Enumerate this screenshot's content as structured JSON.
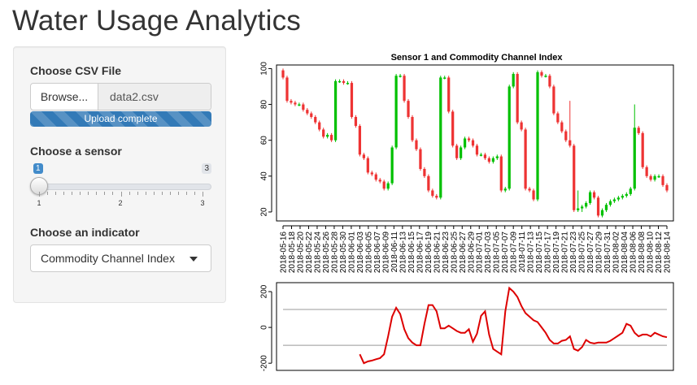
{
  "app": {
    "title": "Water Usage Analytics"
  },
  "sidebar": {
    "file": {
      "label": "Choose CSV File",
      "browse_label": "Browse...",
      "file_name": "data2.csv",
      "progress_text": "Upload complete",
      "progress_value": 100
    },
    "sensor": {
      "label": "Choose a sensor",
      "min": "1",
      "max": "3",
      "value": 1,
      "tick_labels": [
        "1",
        "2",
        "3"
      ]
    },
    "indicator": {
      "label": "Choose an indicator",
      "selected": "Commodity Channel Index"
    }
  },
  "chart_data": [
    {
      "type": "candlestick",
      "title": "Sensor 1 and Commodity Channel Index",
      "ylim": [
        15,
        102
      ],
      "y_ticks": [
        "20",
        "40",
        "60",
        "80",
        "100"
      ],
      "x_tick_labels": [
        "2018-05-16",
        "2018-05-18",
        "2018-05-20",
        "2018-05-22",
        "2018-05-24",
        "2018-05-26",
        "2018-05-28",
        "2018-05-30",
        "2018-06-01",
        "2018-06-03",
        "2018-06-05",
        "2018-06-07",
        "2018-06-09",
        "2018-06-11",
        "2018-06-13",
        "2018-06-15",
        "2018-06-17",
        "2018-06-19",
        "2018-06-21",
        "2018-06-23",
        "2018-06-25",
        "2018-06-27",
        "2018-06-29",
        "2018-07-01",
        "2018-07-03",
        "2018-07-05",
        "2018-07-07",
        "2018-07-09",
        "2018-07-11",
        "2018-07-13",
        "2018-07-15",
        "2018-07-17",
        "2018-07-19",
        "2018-07-21",
        "2018-07-23",
        "2018-07-25",
        "2018-07-27",
        "2018-07-29",
        "2018-07-31",
        "2018-08-02",
        "2018-08-04",
        "2018-08-06",
        "2018-08-08",
        "2018-08-10",
        "2018-08-12",
        "2018-08-14"
      ],
      "up_color": "#00c000",
      "down_color": "#ee3333",
      "open": [
        99,
        95,
        82,
        81,
        80,
        80,
        77,
        75,
        73,
        70,
        66,
        62,
        63,
        60,
        93,
        93,
        92,
        92,
        73,
        68,
        52,
        50,
        42,
        41,
        38,
        37,
        33,
        36,
        56,
        96,
        96,
        82,
        73,
        60,
        55,
        44,
        40,
        32,
        29,
        28,
        95,
        95,
        76,
        57,
        50,
        56,
        61,
        60,
        57,
        52,
        52,
        50,
        48,
        50,
        51,
        32,
        33,
        90,
        97,
        70,
        66,
        33,
        32,
        27,
        98,
        96,
        96,
        90,
        75,
        70,
        65,
        60,
        57,
        21,
        22,
        23,
        25,
        31,
        28,
        18,
        21,
        24,
        26,
        27,
        28,
        29,
        30,
        33,
        67,
        64,
        45,
        40,
        38,
        40,
        40,
        35
      ],
      "close": [
        95,
        82,
        81,
        80,
        80,
        77,
        75,
        73,
        70,
        66,
        62,
        63,
        60,
        93,
        93,
        92,
        92,
        73,
        68,
        52,
        50,
        42,
        41,
        38,
        37,
        33,
        36,
        56,
        96,
        96,
        82,
        73,
        60,
        55,
        44,
        40,
        32,
        29,
        28,
        95,
        95,
        76,
        57,
        50,
        56,
        61,
        60,
        57,
        52,
        52,
        50,
        48,
        50,
        51,
        32,
        33,
        90,
        97,
        70,
        66,
        33,
        32,
        27,
        98,
        96,
        96,
        90,
        75,
        70,
        65,
        60,
        57,
        21,
        22,
        23,
        25,
        31,
        28,
        18,
        21,
        24,
        26,
        27,
        28,
        29,
        30,
        33,
        67,
        64,
        45,
        40,
        38,
        40,
        40,
        35,
        32
      ],
      "high": [
        100,
        96,
        83,
        82,
        81,
        81,
        78,
        76,
        74,
        71,
        67,
        64,
        64,
        94,
        94,
        94,
        93,
        93,
        74,
        69,
        53,
        51,
        43,
        42,
        39,
        38,
        37,
        57,
        97,
        97,
        97,
        83,
        74,
        61,
        56,
        45,
        41,
        33,
        30,
        96,
        96,
        96,
        77,
        58,
        57,
        62,
        62,
        61,
        58,
        53,
        53,
        51,
        51,
        52,
        52,
        34,
        91,
        98,
        98,
        71,
        67,
        34,
        33,
        99,
        99,
        97,
        97,
        91,
        76,
        71,
        66,
        82,
        58,
        32,
        24,
        26,
        32,
        32,
        29,
        22,
        25,
        27,
        28,
        29,
        30,
        31,
        34,
        80,
        68,
        65,
        46,
        41,
        41,
        41,
        41,
        36
      ],
      "low": [
        94,
        81,
        80,
        79,
        79,
        76,
        74,
        72,
        69,
        65,
        61,
        61,
        59,
        59,
        92,
        91,
        91,
        72,
        67,
        51,
        49,
        41,
        40,
        37,
        36,
        32,
        32,
        35,
        55,
        95,
        81,
        72,
        59,
        54,
        43,
        39,
        31,
        28,
        27,
        27,
        94,
        75,
        56,
        49,
        49,
        55,
        59,
        56,
        51,
        51,
        49,
        47,
        47,
        49,
        31,
        31,
        32,
        89,
        69,
        65,
        32,
        31,
        26,
        26,
        95,
        95,
        89,
        74,
        69,
        64,
        59,
        56,
        20,
        20,
        20,
        22,
        24,
        27,
        17,
        17,
        20,
        23,
        25,
        26,
        27,
        28,
        29,
        32,
        63,
        44,
        39,
        37,
        37,
        39,
        34,
        31
      ]
    },
    {
      "type": "line",
      "ylim": [
        -240,
        250
      ],
      "y_ticks": [
        "-200",
        "0",
        "200"
      ],
      "h_lines": [
        100,
        -100
      ],
      "line_color": "#dd0000",
      "values": [
        null,
        null,
        null,
        null,
        null,
        null,
        null,
        null,
        null,
        null,
        null,
        null,
        null,
        null,
        null,
        null,
        null,
        null,
        null,
        -150,
        -200,
        -190,
        -185,
        -178,
        -172,
        -150,
        -50,
        60,
        110,
        75,
        -10,
        -60,
        -85,
        -100,
        -100,
        20,
        125,
        125,
        90,
        -5,
        -5,
        10,
        -5,
        -20,
        -30,
        -30,
        -10,
        -80,
        -35,
        65,
        90,
        -40,
        -120,
        -135,
        -150,
        90,
        220,
        200,
        170,
        120,
        80,
        60,
        40,
        30,
        0,
        -30,
        -70,
        -90,
        -90,
        -75,
        -70,
        -50,
        -120,
        -130,
        -110,
        -70,
        -85,
        -90,
        -85,
        -85,
        -85,
        -75,
        -60,
        -45,
        -30,
        20,
        10,
        -30,
        -50,
        -40,
        -40,
        -50,
        -30,
        -40,
        -50,
        -55
      ]
    }
  ]
}
